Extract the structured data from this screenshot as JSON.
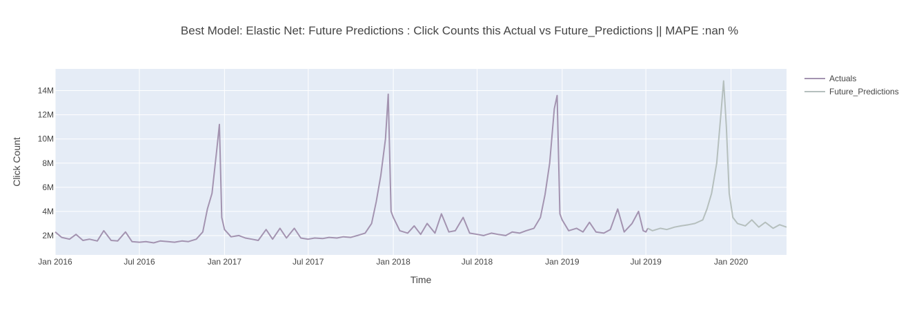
{
  "chart_data": {
    "type": "line",
    "title": "Best Model: Elastic Net: Future Predictions : Click Counts this Actual vs Future_Predictions  || MAPE :nan %",
    "xlabel": "Time",
    "ylabel": "Click Count",
    "xlim": [
      "2016-01-01",
      "2020-04-30"
    ],
    "ylim": [
      400000,
      15800000
    ],
    "x_ticks": [
      {
        "date": "2016-01-01",
        "label": "Jan 2016"
      },
      {
        "date": "2016-07-01",
        "label": "Jul 2016"
      },
      {
        "date": "2017-01-01",
        "label": "Jan 2017"
      },
      {
        "date": "2017-07-01",
        "label": "Jul 2017"
      },
      {
        "date": "2018-01-01",
        "label": "Jan 2018"
      },
      {
        "date": "2018-07-01",
        "label": "Jul 2018"
      },
      {
        "date": "2019-01-01",
        "label": "Jan 2019"
      },
      {
        "date": "2019-07-01",
        "label": "Jul 2019"
      },
      {
        "date": "2020-01-01",
        "label": "Jan 2020"
      }
    ],
    "y_ticks": [
      {
        "value": 2000000,
        "label": "2M"
      },
      {
        "value": 4000000,
        "label": "4M"
      },
      {
        "value": 6000000,
        "label": "6M"
      },
      {
        "value": 8000000,
        "label": "8M"
      },
      {
        "value": 10000000,
        "label": "10M"
      },
      {
        "value": 12000000,
        "label": "12M"
      },
      {
        "value": 14000000,
        "label": "14M"
      }
    ],
    "grid": true,
    "legend_position": "top-right",
    "plot_background": "#e5ecf6",
    "series": [
      {
        "name": "Actuals",
        "color": "#a393b0",
        "points": [
          [
            "2016-01-01",
            2300000
          ],
          [
            "2016-01-15",
            1850000
          ],
          [
            "2016-02-01",
            1700000
          ],
          [
            "2016-02-15",
            2100000
          ],
          [
            "2016-03-01",
            1600000
          ],
          [
            "2016-03-15",
            1700000
          ],
          [
            "2016-04-01",
            1550000
          ],
          [
            "2016-04-15",
            2400000
          ],
          [
            "2016-05-01",
            1600000
          ],
          [
            "2016-05-15",
            1550000
          ],
          [
            "2016-06-01",
            2300000
          ],
          [
            "2016-06-15",
            1500000
          ],
          [
            "2016-07-01",
            1450000
          ],
          [
            "2016-07-15",
            1500000
          ],
          [
            "2016-08-01",
            1400000
          ],
          [
            "2016-08-15",
            1550000
          ],
          [
            "2016-09-01",
            1500000
          ],
          [
            "2016-09-15",
            1450000
          ],
          [
            "2016-10-01",
            1550000
          ],
          [
            "2016-10-15",
            1500000
          ],
          [
            "2016-11-01",
            1700000
          ],
          [
            "2016-11-15",
            2300000
          ],
          [
            "2016-11-25",
            4200000
          ],
          [
            "2016-12-05",
            5500000
          ],
          [
            "2016-12-15",
            9000000
          ],
          [
            "2016-12-21",
            11200000
          ],
          [
            "2016-12-26",
            3500000
          ],
          [
            "2017-01-01",
            2500000
          ],
          [
            "2017-01-15",
            1900000
          ],
          [
            "2017-02-01",
            2000000
          ],
          [
            "2017-02-15",
            1800000
          ],
          [
            "2017-03-01",
            1700000
          ],
          [
            "2017-03-15",
            1600000
          ],
          [
            "2017-04-01",
            2500000
          ],
          [
            "2017-04-15",
            1700000
          ],
          [
            "2017-05-01",
            2600000
          ],
          [
            "2017-05-15",
            1800000
          ],
          [
            "2017-06-01",
            2600000
          ],
          [
            "2017-06-15",
            1800000
          ],
          [
            "2017-07-01",
            1700000
          ],
          [
            "2017-07-15",
            1800000
          ],
          [
            "2017-08-01",
            1750000
          ],
          [
            "2017-08-15",
            1850000
          ],
          [
            "2017-09-01",
            1800000
          ],
          [
            "2017-09-15",
            1900000
          ],
          [
            "2017-10-01",
            1850000
          ],
          [
            "2017-10-15",
            2000000
          ],
          [
            "2017-11-01",
            2200000
          ],
          [
            "2017-11-15",
            3000000
          ],
          [
            "2017-11-25",
            4800000
          ],
          [
            "2017-12-05",
            7000000
          ],
          [
            "2017-12-15",
            10000000
          ],
          [
            "2017-12-21",
            13700000
          ],
          [
            "2017-12-27",
            4000000
          ],
          [
            "2018-01-01",
            3500000
          ],
          [
            "2018-01-15",
            2400000
          ],
          [
            "2018-02-01",
            2200000
          ],
          [
            "2018-02-15",
            2800000
          ],
          [
            "2018-03-01",
            2100000
          ],
          [
            "2018-03-15",
            3000000
          ],
          [
            "2018-04-01",
            2200000
          ],
          [
            "2018-04-15",
            3800000
          ],
          [
            "2018-05-01",
            2300000
          ],
          [
            "2018-05-15",
            2400000
          ],
          [
            "2018-06-01",
            3500000
          ],
          [
            "2018-06-15",
            2200000
          ],
          [
            "2018-07-01",
            2100000
          ],
          [
            "2018-07-15",
            2000000
          ],
          [
            "2018-08-01",
            2200000
          ],
          [
            "2018-08-15",
            2100000
          ],
          [
            "2018-09-01",
            2000000
          ],
          [
            "2018-09-15",
            2300000
          ],
          [
            "2018-10-01",
            2200000
          ],
          [
            "2018-10-15",
            2400000
          ],
          [
            "2018-11-01",
            2600000
          ],
          [
            "2018-11-15",
            3500000
          ],
          [
            "2018-11-25",
            5400000
          ],
          [
            "2018-12-05",
            8000000
          ],
          [
            "2018-12-15",
            12500000
          ],
          [
            "2018-12-21",
            13600000
          ],
          [
            "2018-12-27",
            3800000
          ],
          [
            "2019-01-01",
            3300000
          ],
          [
            "2019-01-15",
            2400000
          ],
          [
            "2019-02-01",
            2600000
          ],
          [
            "2019-02-15",
            2300000
          ],
          [
            "2019-03-01",
            3100000
          ],
          [
            "2019-03-15",
            2300000
          ],
          [
            "2019-04-01",
            2200000
          ],
          [
            "2019-04-15",
            2500000
          ],
          [
            "2019-05-01",
            4200000
          ],
          [
            "2019-05-15",
            2300000
          ],
          [
            "2019-06-01",
            3000000
          ],
          [
            "2019-06-15",
            4000000
          ],
          [
            "2019-06-25",
            2400000
          ],
          [
            "2019-07-01",
            2300000
          ],
          [
            "2019-07-05",
            2600000
          ]
        ]
      },
      {
        "name": "Future_Predictions",
        "color": "#b5bfbd",
        "points": [
          [
            "2019-07-05",
            2600000
          ],
          [
            "2019-07-15",
            2400000
          ],
          [
            "2019-08-01",
            2600000
          ],
          [
            "2019-08-15",
            2500000
          ],
          [
            "2019-09-01",
            2700000
          ],
          [
            "2019-09-15",
            2800000
          ],
          [
            "2019-10-01",
            2900000
          ],
          [
            "2019-10-15",
            3000000
          ],
          [
            "2019-11-01",
            3300000
          ],
          [
            "2019-11-10",
            4200000
          ],
          [
            "2019-11-20",
            5500000
          ],
          [
            "2019-12-01",
            8000000
          ],
          [
            "2019-12-10",
            12000000
          ],
          [
            "2019-12-16",
            14800000
          ],
          [
            "2019-12-22",
            11000000
          ],
          [
            "2019-12-28",
            5500000
          ],
          [
            "2020-01-05",
            3500000
          ],
          [
            "2020-01-15",
            3000000
          ],
          [
            "2020-02-01",
            2800000
          ],
          [
            "2020-02-15",
            3300000
          ],
          [
            "2020-03-01",
            2700000
          ],
          [
            "2020-03-15",
            3100000
          ],
          [
            "2020-04-01",
            2600000
          ],
          [
            "2020-04-15",
            2900000
          ],
          [
            "2020-04-30",
            2700000
          ]
        ]
      }
    ]
  }
}
